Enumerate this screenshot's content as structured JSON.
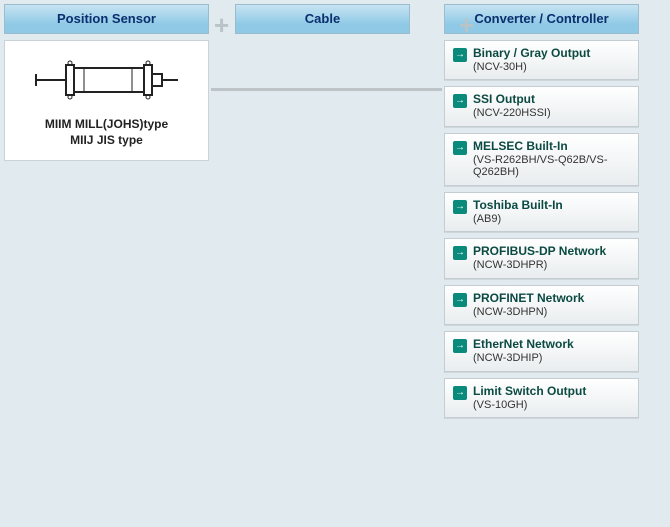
{
  "headers": {
    "left": "Position Sensor",
    "middle": "Cable",
    "right": "Converter / Controller"
  },
  "sensor_card": {
    "line1": "MIIM MILL(JOHS)type",
    "line2": "MIIJ JIS type"
  },
  "items": [
    {
      "title": "Binary / Gray Output",
      "sub": "(NCV-30H)"
    },
    {
      "title": "SSI Output",
      "sub": "(NCV-220HSSI)"
    },
    {
      "title": "MELSEC Built-In",
      "sub": "(VS-R262BH/VS-Q62B/VS-Q262BH)"
    },
    {
      "title": "Toshiba Built-In",
      "sub": "(AB9)"
    },
    {
      "title": "PROFIBUS-DP Network",
      "sub": "(NCW-3DHPR)"
    },
    {
      "title": "PROFINET Network",
      "sub": "(NCW-3DHPN)"
    },
    {
      "title": "EtherNet Network",
      "sub": "(NCW-3DHIP)"
    },
    {
      "title": "Limit Switch Output",
      "sub": "(VS-10GH)"
    }
  ],
  "colors": {
    "page_bg": "#e0eaef",
    "header_bg_top": "#c6e4f2",
    "header_bg_bot": "#8fc9e6",
    "header_text": "#0a2f6e",
    "arrow_bg": "#0a8a7a",
    "item_title": "#0b4a42",
    "plus": "#b9c4c9"
  }
}
